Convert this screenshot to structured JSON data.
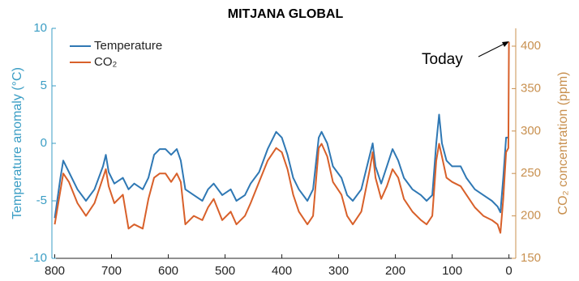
{
  "chart_data": {
    "type": "line",
    "title": "MITJANA GLOBAL",
    "y_label": "Temperature anomaly (°C)",
    "y2_label": "CO₂ concentration (ppm)",
    "annotation": "Today",
    "xlim": [
      805,
      -12
    ],
    "xticks": [
      800,
      700,
      600,
      500,
      400,
      300,
      200,
      100,
      0
    ],
    "ylim": [
      -10,
      10
    ],
    "yticks": [
      -10,
      -5,
      0,
      5,
      10
    ],
    "y2lim": [
      150,
      421
    ],
    "y2ticks": [
      150,
      200,
      250,
      300,
      350,
      400
    ],
    "legend": "upper left",
    "grid": false,
    "series": [
      {
        "name": "Temperature",
        "color": "#2f78b4",
        "axis": "y",
        "x": [
          800,
          790,
          785,
          775,
          760,
          745,
          730,
          715,
          710,
          705,
          695,
          680,
          670,
          660,
          645,
          635,
          625,
          615,
          605,
          595,
          585,
          578,
          570,
          555,
          540,
          530,
          520,
          505,
          490,
          480,
          465,
          455,
          440,
          425,
          410,
          400,
          390,
          380,
          370,
          355,
          345,
          335,
          330,
          320,
          310,
          295,
          285,
          275,
          260,
          245,
          240,
          235,
          225,
          215,
          205,
          195,
          185,
          170,
          155,
          145,
          135,
          128,
          123,
          118,
          110,
          100,
          85,
          75,
          60,
          45,
          30,
          20,
          15,
          10,
          5,
          0
        ],
        "values": [
          -6.5,
          -3,
          -1.5,
          -2.5,
          -4,
          -5,
          -4,
          -2,
          -1,
          -2.5,
          -3.5,
          -3,
          -4,
          -3.5,
          -4,
          -3,
          -1,
          -0.5,
          -0.5,
          -1,
          -0.5,
          -1.5,
          -4,
          -4.5,
          -5,
          -4,
          -3.5,
          -4.5,
          -4,
          -5,
          -4.5,
          -3.5,
          -2.5,
          -0.5,
          1,
          0.5,
          -1,
          -3,
          -4,
          -5,
          -4,
          0.5,
          1,
          0,
          -2,
          -3,
          -4.5,
          -5,
          -4,
          -1,
          0,
          -2,
          -3.5,
          -2,
          -0.5,
          -1.5,
          -3,
          -4,
          -4.5,
          -5,
          -4.5,
          0,
          2.5,
          0,
          -1.5,
          -2,
          -2,
          -3,
          -4,
          -4.5,
          -5,
          -5.5,
          -6,
          -3,
          0.5,
          0.5
        ]
      },
      {
        "name": "CO₂",
        "color": "#d8602a",
        "axis": "y2",
        "x": [
          800,
          790,
          785,
          775,
          760,
          745,
          730,
          715,
          710,
          705,
          695,
          680,
          670,
          660,
          645,
          635,
          625,
          615,
          605,
          595,
          585,
          578,
          570,
          555,
          540,
          530,
          520,
          505,
          490,
          480,
          465,
          455,
          440,
          425,
          410,
          400,
          390,
          380,
          370,
          355,
          345,
          335,
          330,
          320,
          310,
          295,
          285,
          275,
          260,
          245,
          240,
          235,
          225,
          215,
          205,
          195,
          185,
          170,
          155,
          145,
          135,
          128,
          123,
          118,
          110,
          100,
          85,
          75,
          60,
          45,
          30,
          20,
          15,
          10,
          5,
          1,
          0
        ],
        "values": [
          190,
          230,
          250,
          240,
          215,
          200,
          215,
          245,
          255,
          235,
          215,
          225,
          185,
          190,
          185,
          220,
          245,
          250,
          250,
          240,
          250,
          240,
          190,
          200,
          195,
          210,
          220,
          195,
          205,
          190,
          200,
          215,
          240,
          265,
          280,
          275,
          255,
          225,
          205,
          190,
          200,
          280,
          285,
          270,
          240,
          225,
          200,
          190,
          205,
          255,
          275,
          245,
          220,
          235,
          255,
          245,
          220,
          205,
          195,
          190,
          200,
          265,
          285,
          270,
          245,
          240,
          235,
          225,
          210,
          200,
          195,
          190,
          180,
          220,
          275,
          280,
          405
        ]
      }
    ]
  }
}
